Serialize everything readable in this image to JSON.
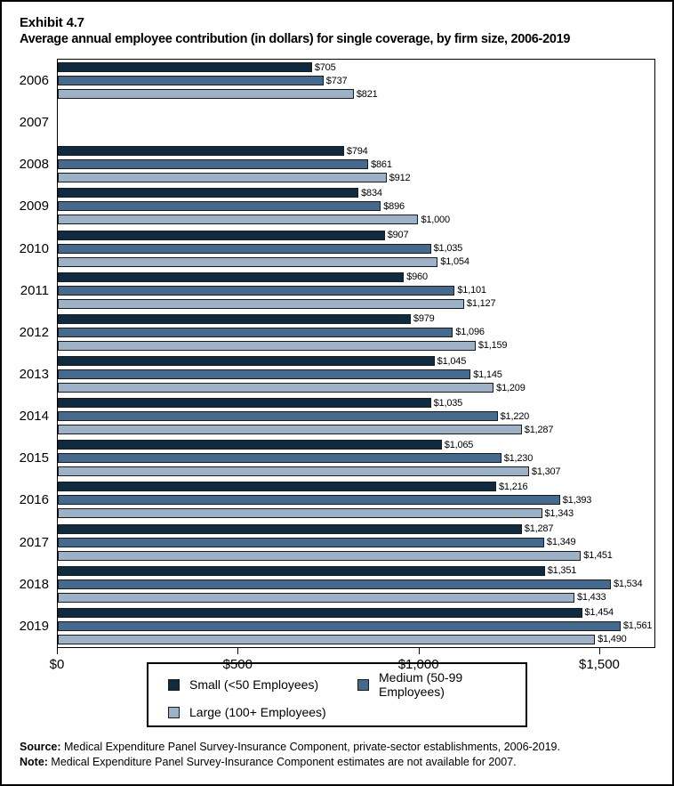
{
  "title": {
    "exhibit": "Exhibit 4.7",
    "text": "Average annual employee contribution (in dollars) for single coverage, by firm size, 2006-2019"
  },
  "chart_data": {
    "type": "bar",
    "orientation": "horizontal",
    "title": "Average annual employee contribution (in dollars) for single coverage, by firm size, 2006-2019",
    "xlabel": "",
    "ylabel": "",
    "xlim": [
      0,
      1655
    ],
    "grid": false,
    "legend_position": "bottom",
    "ticks": [
      {
        "value": 0,
        "label": "$0"
      },
      {
        "value": 500,
        "label": "$500"
      },
      {
        "value": 1000,
        "label": "$1,000"
      },
      {
        "value": 1500,
        "label": "$1,500"
      }
    ],
    "series": [
      {
        "key": "small",
        "name": "Small (<50 Employees)",
        "color": "#102A40"
      },
      {
        "key": "medium",
        "name": "Medium (50-99 Employees)",
        "color": "#456A8D"
      },
      {
        "key": "large",
        "name": "Large (100+ Employees)",
        "color": "#9DB2C7"
      }
    ],
    "years": [
      {
        "label": "2006",
        "values": [
          705,
          737,
          821
        ],
        "labels": [
          "$705",
          "$737",
          "$821"
        ]
      },
      {
        "label": "2007",
        "values": [],
        "labels": []
      },
      {
        "label": "2008",
        "values": [
          794,
          861,
          912
        ],
        "labels": [
          "$794",
          "$861",
          "$912"
        ]
      },
      {
        "label": "2009",
        "values": [
          834,
          896,
          1000
        ],
        "labels": [
          "$834",
          "$896",
          "$1,000"
        ]
      },
      {
        "label": "2010",
        "values": [
          907,
          1035,
          1054
        ],
        "labels": [
          "$907",
          "$1,035",
          "$1,054"
        ]
      },
      {
        "label": "2011",
        "values": [
          960,
          1101,
          1127
        ],
        "labels": [
          "$960",
          "$1,101",
          "$1,127"
        ]
      },
      {
        "label": "2012",
        "values": [
          979,
          1096,
          1159
        ],
        "labels": [
          "$979",
          "$1,096",
          "$1,159"
        ]
      },
      {
        "label": "2013",
        "values": [
          1045,
          1145,
          1209
        ],
        "labels": [
          "$1,045",
          "$1,145",
          "$1,209"
        ]
      },
      {
        "label": "2014",
        "values": [
          1035,
          1220,
          1287
        ],
        "labels": [
          "$1,035",
          "$1,220",
          "$1,287"
        ]
      },
      {
        "label": "2015",
        "values": [
          1065,
          1230,
          1307
        ],
        "labels": [
          "$1,065",
          "$1,230",
          "$1,307"
        ]
      },
      {
        "label": "2016",
        "values": [
          1216,
          1393,
          1343
        ],
        "labels": [
          "$1,216",
          "$1,393",
          "$1,343"
        ]
      },
      {
        "label": "2017",
        "values": [
          1287,
          1349,
          1451
        ],
        "labels": [
          "$1,287",
          "$1,349",
          "$1,451"
        ]
      },
      {
        "label": "2018",
        "values": [
          1351,
          1534,
          1433
        ],
        "labels": [
          "$1,351",
          "$1,534",
          "$1,433"
        ]
      },
      {
        "label": "2019",
        "values": [
          1454,
          1561,
          1490
        ],
        "labels": [
          "$1,454",
          "$1,561",
          "$1,490"
        ]
      }
    ]
  },
  "legend": {
    "items": [
      {
        "label": "Small (<50 Employees)",
        "color": "#102A40"
      },
      {
        "label": "Medium (50-99 Employees)",
        "color": "#456A8D"
      },
      {
        "label": "Large (100+ Employees)",
        "color": "#9DB2C7"
      }
    ]
  },
  "footer": {
    "source_label": "Source:",
    "source_text": " Medical Expenditure Panel Survey-Insurance Component, private-sector establishments, 2006-2019.",
    "note_label": "Note:",
    "note_text": " Medical Expenditure Panel Survey-Insurance Component estimates are not available for 2007."
  }
}
